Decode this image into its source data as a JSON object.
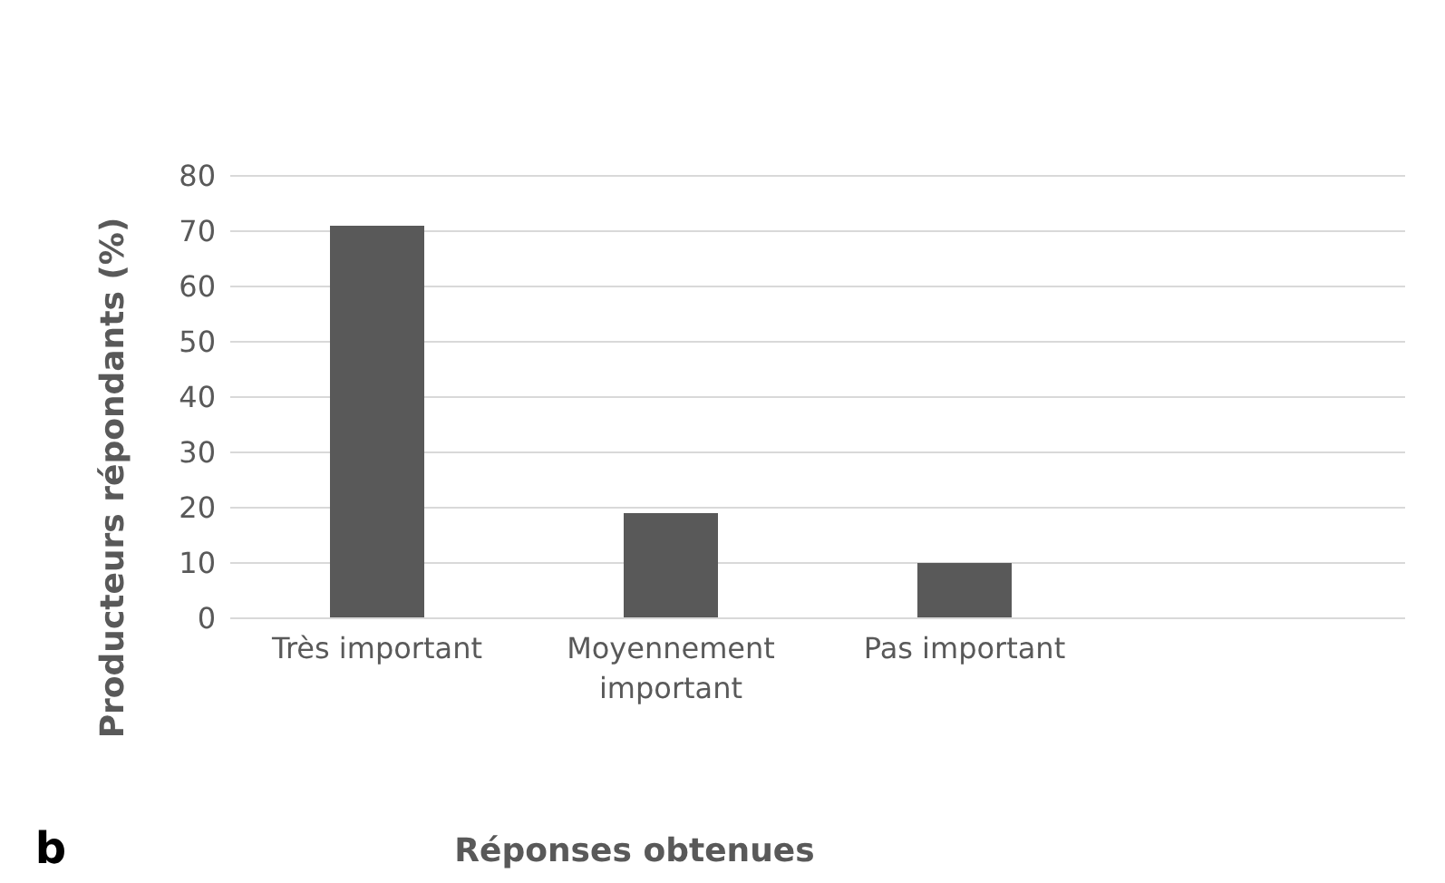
{
  "chart_data": {
    "type": "bar",
    "xlabel": "Réponses obtenues",
    "ylabel": "Producteurs répondants (%)",
    "categories": [
      "Très important",
      "Moyennement important",
      "Pas important",
      null
    ],
    "values": [
      71,
      19,
      10,
      null
    ],
    "color": "#595959",
    "ylim": [
      0,
      80
    ],
    "yticks": [
      0,
      10,
      20,
      30,
      40,
      50,
      60,
      70,
      80
    ],
    "grid": "y",
    "annotations": [
      "b"
    ]
  }
}
